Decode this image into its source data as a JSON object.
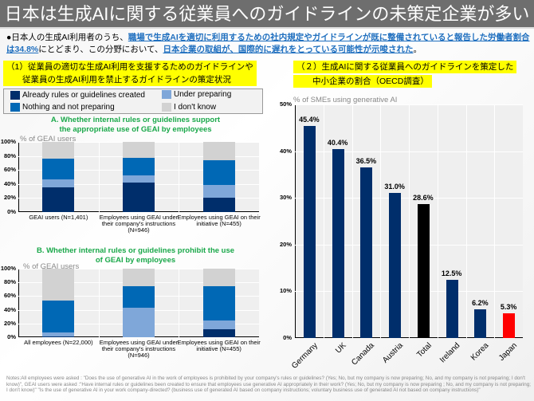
{
  "title": "日本は生成AIに関する従業員へのガイドラインの未策定企業が多い",
  "lead": {
    "bullet": "●",
    "p1": "日本人の生成AI利用者のうち、",
    "u1": "職場で生成AIを適切に利用するための社内規定やガイドラインが既に整備されていると報告した労働者割合は34.8%",
    "p2": "にとどまり、この分野において、",
    "u2": "日本企業の取組が、国際的に遅れをとっている可能性が示唆された",
    "p3": "。"
  },
  "section1": {
    "line1": "（1）従業員の適切な生成AI利用を支援するためのガイドラインや",
    "line2": "従業員の生成AI利用を禁止するガイドラインの策定状況"
  },
  "section2": {
    "line1": "（２）生成AIに関する従業員へのガイドラインを策定した",
    "line2": "中小企業の割合（OECD調査）"
  },
  "legend": [
    {
      "label": "Already rules or guidelines created",
      "color": "#002e6b"
    },
    {
      "label": "Under preparing",
      "color": "#7fa7d9"
    },
    {
      "label": "Nothing and not preparing",
      "color": "#0068b5"
    },
    {
      "label": "I don't know",
      "color": "#d2d2d2"
    }
  ],
  "chart_data": [
    {
      "type": "bar",
      "stacked": true,
      "title": "A. Whether internal rules or guidelines support the appropriate use of GEAI by employees",
      "ylabel": "% of GEAI users",
      "ylim": [
        0,
        100
      ],
      "yticks": [
        "100%",
        "80%",
        "60%",
        "40%",
        "20%",
        "0%"
      ],
      "categories": [
        "GEAI users (N=1,401)",
        "Employees using GEAI under their company's instructions (N=946)",
        "Employees using GEAI on their initiative (N=455)"
      ],
      "series": [
        {
          "name": "Already rules or guidelines created",
          "values": [
            35,
            42,
            20
          ]
        },
        {
          "name": "Under preparing",
          "values": [
            12,
            10,
            19
          ]
        },
        {
          "name": "Nothing and not preparing",
          "values": [
            29,
            25,
            35
          ]
        },
        {
          "name": "I don't know",
          "values": [
            24,
            23,
            26
          ]
        }
      ]
    },
    {
      "type": "bar",
      "stacked": true,
      "title": "B. Whether internal rules or guidelines prohibit the use of GEAI by employees",
      "ylabel": "% of GEAI users",
      "ylim": [
        0,
        100
      ],
      "yticks": [
        "100%",
        "80%",
        "60%",
        "40%",
        "20%",
        "0%"
      ],
      "categories": [
        "All employees (N=22,000)",
        "Employees using GEAI under their company's instructions (N=946)",
        "Employees using GEAI on their initiative (N=455)"
      ],
      "series": [
        {
          "name": "Already rules or guidelines created",
          "values": [
            1,
            0,
            12
          ]
        },
        {
          "name": "Under preparing",
          "values": [
            6,
            43,
            12
          ]
        },
        {
          "name": "Nothing and not preparing",
          "values": [
            46,
            32,
            51
          ]
        },
        {
          "name": "I don't know",
          "values": [
            47,
            25,
            25
          ]
        }
      ]
    },
    {
      "type": "bar",
      "ylabel": "% of SMEs using generative AI",
      "ylim": [
        0,
        50
      ],
      "yticks": [
        "50%",
        "40%",
        "30%",
        "20%",
        "10%",
        "0%"
      ],
      "categories": [
        "Germany",
        "UK",
        "Canada",
        "Austria",
        "Total",
        "Ireland",
        "Korea",
        "Japan"
      ],
      "values": [
        45.4,
        40.4,
        36.5,
        31.0,
        28.6,
        12.5,
        6.2,
        5.3
      ],
      "labels": [
        "45.4%",
        "40.4%",
        "36.5%",
        "31.0%",
        "28.6%",
        "12.5%",
        "6.2%",
        "5.3%"
      ],
      "colors": [
        "#002e6b",
        "#002e6b",
        "#002e6b",
        "#002e6b",
        "#000000",
        "#002e6b",
        "#002e6b",
        "#ff0000"
      ]
    }
  ],
  "notes": "Notes:All employees were asked : \"Does the use of generative AI in the work of employees is prohibited by your company's rules or guidelines? (Yes; No, but my company is now preparing; No, and my company is not preparing; I don't know)\",  GEAI users were asked :\"Have internal rules or guidelines been created to ensure that employees use generative AI appropriately in their work? (Yes; No, but my company is now preparing ; No, and my company is not preparing; I don't know)\" \"Is the use of generative AI in your work company-directed? (business use of generated AI based on company instructions; voluntary business use of generated AI not based on company instructions)\""
}
